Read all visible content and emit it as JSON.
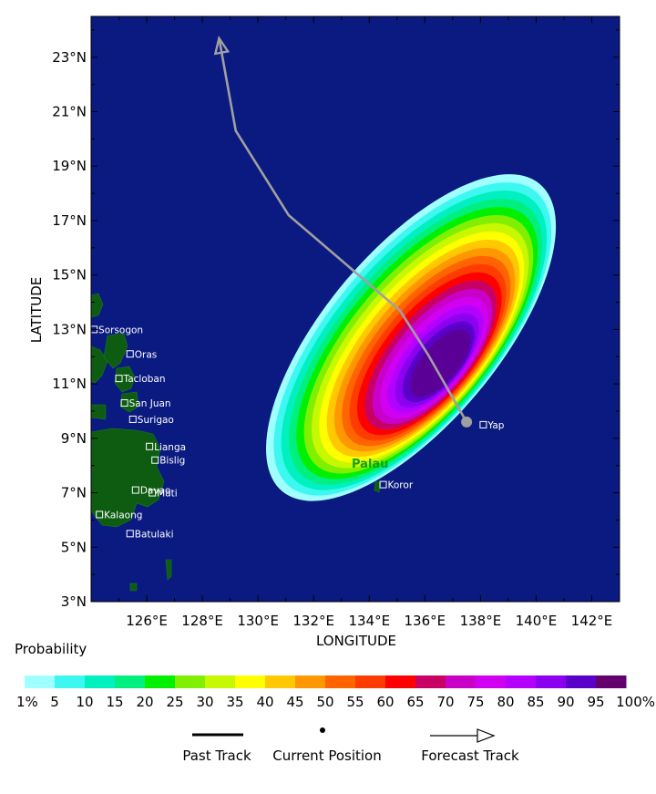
{
  "map": {
    "xlabel": "LONGITUDE",
    "ylabel": "LATITUDE",
    "lon_ticks": [
      "126°E",
      "128°E",
      "130°E",
      "132°E",
      "134°E",
      "136°E",
      "138°E",
      "140°E",
      "142°E"
    ],
    "lat_ticks": [
      "23°N",
      "21°N",
      "19°N",
      "17°N",
      "15°N",
      "13°N",
      "11°N",
      "9°N",
      "7°N",
      "5°N",
      "3°N"
    ],
    "lon_range": [
      124,
      143
    ],
    "lat_range": [
      3,
      24.5
    ],
    "ocean_color": "#0a1a80",
    "land_color": "#0e5c12",
    "track_color": "#a0a0a0",
    "track": [
      [
        137.5,
        9.6
      ],
      [
        136.1,
        12.1
      ],
      [
        135.1,
        13.7
      ],
      [
        131.1,
        17.2
      ],
      [
        129.2,
        20.3
      ],
      [
        128.6,
        23.7
      ]
    ],
    "current_position": [
      137.5,
      9.6
    ],
    "cities": [
      {
        "name": "Sorsogon",
        "lon": 124.1,
        "lat": 13.0
      },
      {
        "name": "Oras",
        "lon": 125.4,
        "lat": 12.1
      },
      {
        "name": "Tacloban",
        "lon": 125.0,
        "lat": 11.2
      },
      {
        "name": "San Juan",
        "lon": 125.2,
        "lat": 10.3
      },
      {
        "name": "Surigao",
        "lon": 125.5,
        "lat": 9.7
      },
      {
        "name": "Lianga",
        "lon": 126.1,
        "lat": 8.7
      },
      {
        "name": "Bislig",
        "lon": 126.3,
        "lat": 8.2
      },
      {
        "name": "Davao",
        "lon": 125.6,
        "lat": 7.1
      },
      {
        "name": "Mati",
        "lon": 126.2,
        "lat": 7.0
      },
      {
        "name": "Kalaong",
        "lon": 124.3,
        "lat": 6.2
      },
      {
        "name": "Batulaki",
        "lon": 125.4,
        "lat": 5.5
      },
      {
        "name": "Koror",
        "lon": 134.5,
        "lat": 7.3
      },
      {
        "name": "Yap",
        "lon": 138.1,
        "lat": 9.5
      }
    ],
    "region_label": "Palau"
  },
  "scale": {
    "title": "Probability",
    "colors": [
      "#a0ffff",
      "#3cf8f0",
      "#00f0c0",
      "#00f080",
      "#00f000",
      "#80f000",
      "#c8f800",
      "#ffff00",
      "#ffc800",
      "#ff9800",
      "#ff6400",
      "#ff3c00",
      "#ff0000",
      "#c80064",
      "#c800c8",
      "#d200f0",
      "#b400ff",
      "#8c00f0",
      "#5a00c8",
      "#5a0096",
      "#64006e"
    ],
    "labels": [
      "1%",
      "5",
      "10",
      "15",
      "20",
      "25",
      "30",
      "35",
      "40",
      "45",
      "50",
      "55",
      "60",
      "65",
      "70",
      "75",
      "80",
      "85",
      "90",
      "95",
      "100%"
    ]
  },
  "legend": {
    "past_track": "Past Track",
    "current_position": "Current Position",
    "forecast_track": "Forecast Track"
  }
}
